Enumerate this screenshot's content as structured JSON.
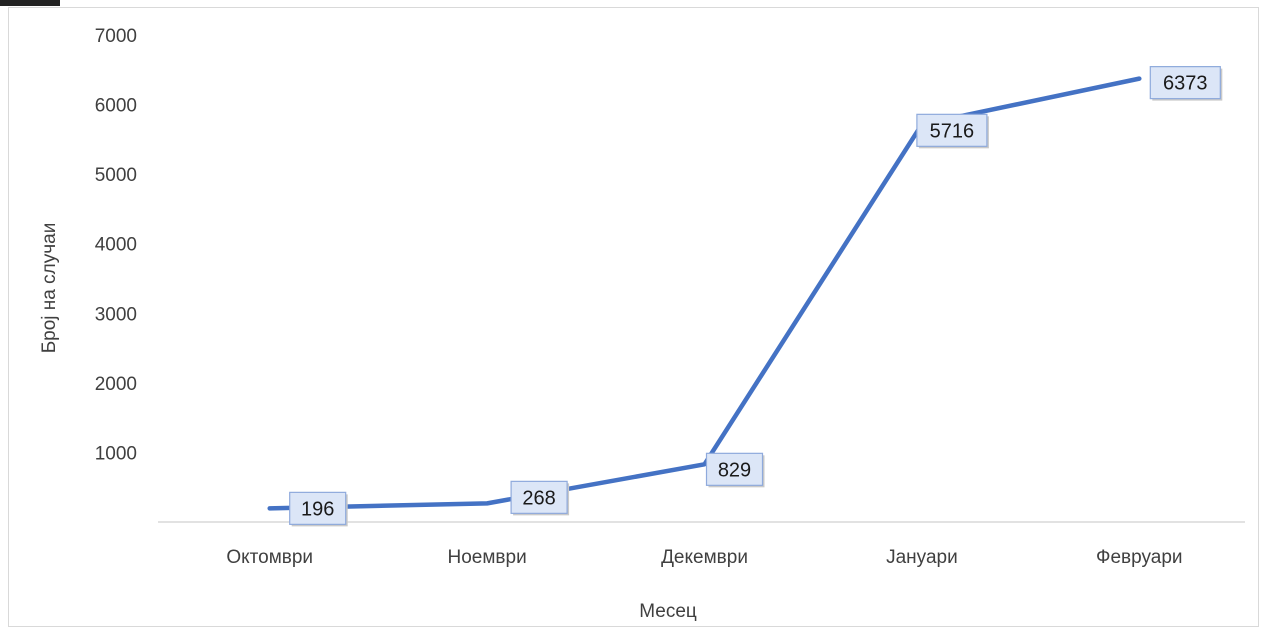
{
  "chart_data": {
    "type": "line",
    "title": "",
    "xlabel": "Месец",
    "ylabel": "Број на случаи",
    "categories": [
      "Октомври",
      "Ноември",
      "Декември",
      "Јануари",
      "Февруари"
    ],
    "series": [
      {
        "values": [
          196,
          268,
          829,
          5716,
          6373
        ]
      }
    ],
    "yticks": [
      1000,
      2000,
      3000,
      4000,
      5000,
      6000,
      7000
    ],
    "ylim": [
      0,
      7000
    ],
    "grid": false,
    "legend": "none",
    "data_labels": true,
    "colors": {
      "line": "#4472c4",
      "label_fill": "#dce6f7",
      "label_border": "#8faadc",
      "axis": "#d9d9d9"
    }
  }
}
